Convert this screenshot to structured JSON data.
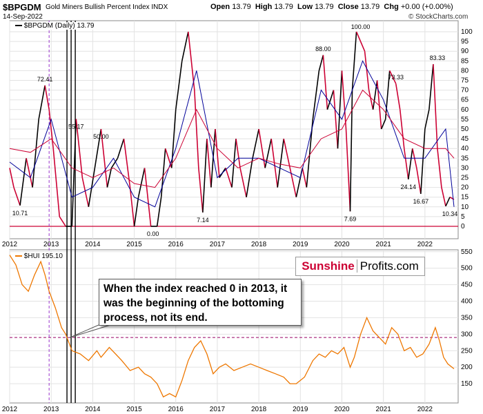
{
  "header": {
    "symbol": "$BPGDM",
    "name": "Gold Miners Bullish Percent Index",
    "exchange": "INDX",
    "date": "14-Sep-2022",
    "open_label": "Open",
    "open_value": "13.79",
    "high_label": "High",
    "high_value": "13.79",
    "low_label": "Low",
    "low_value": "13.79",
    "close_label": "Close",
    "close_value": "13.79",
    "chg_label": "Chg",
    "chg_value": "+0.00 (+0.00%)",
    "brand": "© StockCharts.com"
  },
  "top_legend": "$BPGDM (Daily) 13.79",
  "bottom_legend": "$HUI 195.10",
  "watermark": {
    "part1": "Sunshine",
    "part2": "Profits.com"
  },
  "annotation": "When the index reached 0 in 2013, it was the beginning of the bottoming process, not its end.",
  "colors": {
    "bpgdm_up": "#000000",
    "bpgdm_down": "#cc0033",
    "ma_fast": "#000099",
    "ma_slow": "#cc0033",
    "hui": "#ee7700",
    "zero_line": "#cc0033",
    "hui_ref_line": "#990066",
    "marker_2013": "#9933cc",
    "brand_red": "#cc0033"
  },
  "chart_data": [
    {
      "type": "line",
      "title": "Gold Miners Bullish Percent Index",
      "series": [
        {
          "name": "$BPGDM (Daily)",
          "x": [
            2012.0,
            2012.1,
            2012.25,
            2012.4,
            2012.55,
            2012.7,
            2012.85,
            2012.95,
            2013.05,
            2013.2,
            2013.35,
            2013.5,
            2013.6,
            2013.75,
            2013.9,
            2014.05,
            2014.2,
            2014.35,
            2014.45,
            2014.6,
            2014.75,
            2014.9,
            2015.0,
            2015.1,
            2015.25,
            2015.4,
            2015.55,
            2015.65,
            2015.75,
            2015.9,
            2016.0,
            2016.15,
            2016.3,
            2016.45,
            2016.55,
            2016.65,
            2016.75,
            2016.85,
            2016.95,
            2017.05,
            2017.2,
            2017.35,
            2017.45,
            2017.55,
            2017.7,
            2017.85,
            2018.0,
            2018.15,
            2018.3,
            2018.45,
            2018.6,
            2018.75,
            2018.9,
            2019.05,
            2019.15,
            2019.3,
            2019.45,
            2019.55,
            2019.65,
            2019.8,
            2019.9,
            2020.0,
            2020.1,
            2020.2,
            2020.25,
            2020.35,
            2020.45,
            2020.55,
            2020.65,
            2020.75,
            2020.85,
            2020.95,
            2021.05,
            2021.15,
            2021.3,
            2021.4,
            2021.5,
            2021.6,
            2021.7,
            2021.8,
            2021.9,
            2022.0,
            2022.1,
            2022.2,
            2022.3,
            2022.4,
            2022.5,
            2022.6,
            2022.7
          ],
          "values": [
            30,
            20,
            10.71,
            35,
            20,
            55,
            72.41,
            60,
            40,
            5,
            0,
            0,
            55.17,
            25,
            10,
            30,
            50,
            20,
            30,
            35,
            45,
            20,
            0,
            15,
            30,
            0,
            0,
            15,
            40,
            30,
            60,
            85,
            100,
            70,
            30,
            7.14,
            45,
            20,
            50,
            25,
            30,
            20,
            45,
            30,
            15,
            35,
            50,
            30,
            45,
            20,
            45,
            30,
            15,
            30,
            20,
            55,
            80,
            88,
            60,
            70,
            40,
            80,
            50,
            7.69,
            70,
            100,
            95,
            90,
            70,
            60,
            75,
            50,
            55,
            80,
            73.33,
            60,
            40,
            24.14,
            40,
            30,
            16.67,
            50,
            60,
            83.33,
            40,
            20,
            10.34,
            15,
            13.79
          ]
        },
        {
          "name": "Fast MA",
          "x": [
            2012.0,
            2012.5,
            2013.0,
            2013.5,
            2014.0,
            2014.5,
            2015.0,
            2015.5,
            2016.0,
            2016.5,
            2017.0,
            2017.5,
            2018.0,
            2018.5,
            2019.0,
            2019.5,
            2020.0,
            2020.5,
            2021.0,
            2021.5,
            2022.0,
            2022.5,
            2022.7
          ],
          "values": [
            33,
            25,
            55,
            15,
            20,
            35,
            15,
            10,
            40,
            80,
            25,
            35,
            35,
            30,
            25,
            70,
            55,
            85,
            65,
            35,
            35,
            50,
            10
          ]
        },
        {
          "name": "Slow MA",
          "x": [
            2012.0,
            2012.5,
            2013.0,
            2013.5,
            2014.0,
            2014.5,
            2015.0,
            2015.5,
            2016.0,
            2016.5,
            2017.0,
            2017.5,
            2018.0,
            2018.5,
            2019.0,
            2019.5,
            2020.0,
            2020.5,
            2021.0,
            2021.5,
            2022.0,
            2022.5,
            2022.7
          ],
          "values": [
            40,
            38,
            45,
            30,
            25,
            30,
            22,
            20,
            35,
            60,
            40,
            30,
            35,
            32,
            30,
            45,
            50,
            70,
            60,
            45,
            40,
            40,
            35
          ]
        }
      ],
      "ylim": [
        0,
        100
      ],
      "yticks": [
        0,
        5,
        10,
        15,
        20,
        25,
        30,
        35,
        40,
        45,
        50,
        55,
        60,
        65,
        70,
        75,
        80,
        85,
        90,
        95,
        100
      ],
      "data_labels": [
        {
          "text": "72.41",
          "x": 2012.85,
          "y": 72.41
        },
        {
          "text": "10.71",
          "x": 2012.25,
          "y": 10.71
        },
        {
          "text": "55.17",
          "x": 2013.6,
          "y": 55.17
        },
        {
          "text": "50.00",
          "x": 2014.2,
          "y": 50
        },
        {
          "text": "0.00",
          "x": 2015.45,
          "y": 0
        },
        {
          "text": "7.14",
          "x": 2016.65,
          "y": 7.14
        },
        {
          "text": "88.00",
          "x": 2019.55,
          "y": 88
        },
        {
          "text": "100.00",
          "x": 2020.45,
          "y": 100
        },
        {
          "text": "7.69",
          "x": 2020.2,
          "y": 7.69
        },
        {
          "text": "73.33",
          "x": 2021.3,
          "y": 73.33
        },
        {
          "text": "24.14",
          "x": 2021.6,
          "y": 24.14
        },
        {
          "text": "16.67",
          "x": 2021.9,
          "y": 16.67
        },
        {
          "text": "83.33",
          "x": 2022.3,
          "y": 83.33
        },
        {
          "text": "10.34",
          "x": 2022.6,
          "y": 10.34
        }
      ]
    },
    {
      "type": "line",
      "series": [
        {
          "name": "$HUI",
          "x": [
            2012.0,
            2012.15,
            2012.3,
            2012.45,
            2012.6,
            2012.75,
            2012.85,
            2012.95,
            2013.1,
            2013.25,
            2013.35,
            2013.5,
            2013.7,
            2013.9,
            2014.1,
            2014.2,
            2014.4,
            2014.55,
            2014.7,
            2014.9,
            2015.1,
            2015.25,
            2015.4,
            2015.55,
            2015.7,
            2015.85,
            2016.0,
            2016.15,
            2016.3,
            2016.45,
            2016.6,
            2016.75,
            2016.9,
            2017.05,
            2017.2,
            2017.4,
            2017.6,
            2017.8,
            2018.0,
            2018.2,
            2018.4,
            2018.6,
            2018.75,
            2018.9,
            2019.1,
            2019.3,
            2019.45,
            2019.6,
            2019.75,
            2019.9,
            2020.05,
            2020.2,
            2020.3,
            2020.45,
            2020.6,
            2020.75,
            2020.9,
            2021.05,
            2021.2,
            2021.35,
            2021.5,
            2021.65,
            2021.8,
            2021.95,
            2022.1,
            2022.25,
            2022.35,
            2022.45,
            2022.55,
            2022.7
          ],
          "values": [
            540,
            510,
            450,
            430,
            480,
            520,
            480,
            430,
            380,
            320,
            300,
            250,
            240,
            220,
            250,
            230,
            260,
            240,
            220,
            190,
            200,
            180,
            170,
            150,
            110,
            120,
            110,
            160,
            220,
            260,
            280,
            240,
            180,
            200,
            210,
            190,
            200,
            210,
            200,
            190,
            180,
            170,
            150,
            150,
            170,
            220,
            240,
            230,
            250,
            240,
            260,
            200,
            230,
            300,
            350,
            310,
            290,
            270,
            320,
            300,
            250,
            260,
            230,
            240,
            270,
            320,
            280,
            230,
            210,
            195.1
          ]
        }
      ],
      "ylim": [
        100,
        560
      ],
      "yticks": [
        150,
        200,
        250,
        300,
        350,
        400,
        450,
        500,
        550
      ],
      "reference_line": 290
    }
  ],
  "x_axis": {
    "range": [
      2012.0,
      2022.8
    ],
    "ticks": [
      "2012",
      "2013",
      "2014",
      "2015",
      "2016",
      "2017",
      "2018",
      "2019",
      "2020",
      "2021",
      "2022"
    ]
  },
  "vertical_markers": {
    "dashed": [
      2012.95
    ],
    "solid": [
      2013.38,
      2013.48,
      2013.58
    ]
  }
}
